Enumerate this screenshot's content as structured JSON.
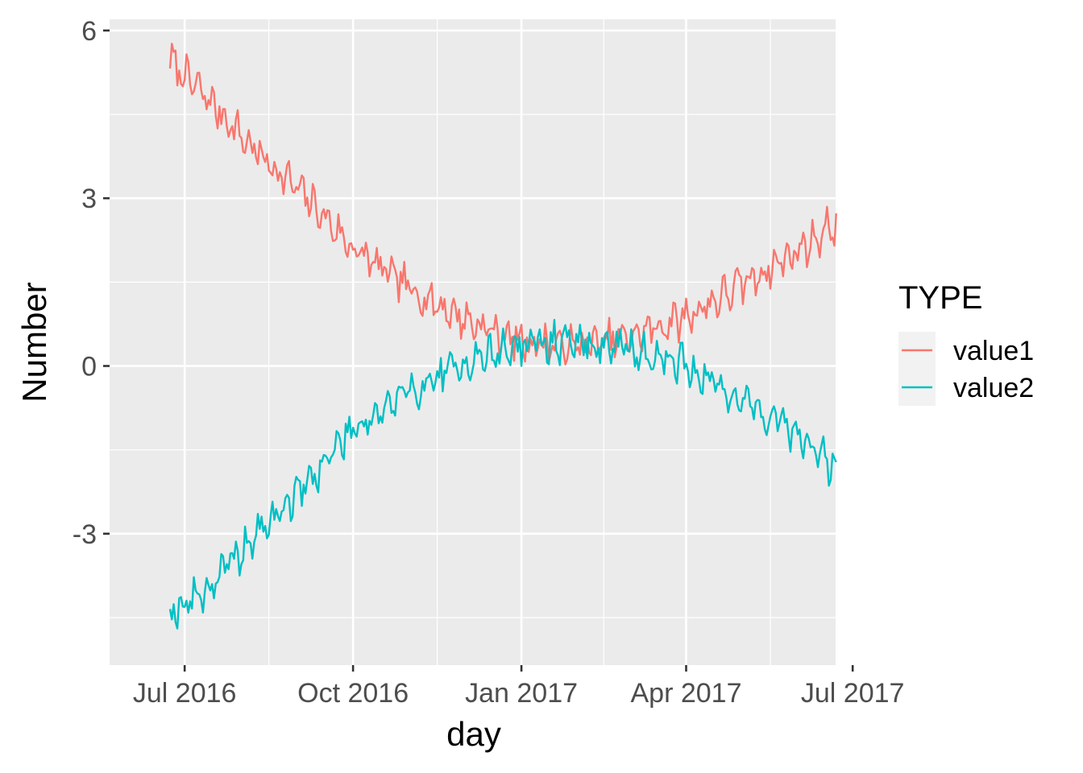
{
  "chart_data": {
    "type": "line",
    "x_start_date": "2016-06-23",
    "x_end_date": "2017-06-21",
    "day_count": 364,
    "xlabel": "day",
    "ylabel": "Number",
    "ylim": [
      -5.35,
      6.2
    ],
    "y_ticks": [
      {
        "value": 6,
        "label": "6"
      },
      {
        "value": 3,
        "label": "3"
      },
      {
        "value": 0,
        "label": "0"
      },
      {
        "value": -3,
        "label": "-3"
      }
    ],
    "y_minor": [
      -4.5,
      -1.5,
      1.5,
      4.5
    ],
    "x_ticks": [
      {
        "day": 8,
        "label": "Jul 2016"
      },
      {
        "day": 100,
        "label": "Oct 2016"
      },
      {
        "day": 192,
        "label": "Jan 2017"
      },
      {
        "day": 282,
        "label": "Apr 2017"
      },
      {
        "day": 373,
        "label": "Jul 2017"
      }
    ],
    "x_minor": [
      54,
      146,
      237,
      328
    ],
    "legend": {
      "title": "TYPE",
      "position": "right"
    },
    "series": [
      {
        "name": "value1",
        "color": "#F8766D",
        "anchors": [
          {
            "day": 0,
            "value": 5.45
          },
          {
            "day": 20,
            "value": 4.8
          },
          {
            "day": 45,
            "value": 3.9
          },
          {
            "day": 75,
            "value": 3.0
          },
          {
            "day": 100,
            "value": 2.1
          },
          {
            "day": 130,
            "value": 1.4
          },
          {
            "day": 160,
            "value": 0.85
          },
          {
            "day": 190,
            "value": 0.45
          },
          {
            "day": 220,
            "value": 0.35
          },
          {
            "day": 250,
            "value": 0.5
          },
          {
            "day": 280,
            "value": 0.85
          },
          {
            "day": 310,
            "value": 1.4
          },
          {
            "day": 340,
            "value": 2.0
          },
          {
            "day": 364,
            "value": 2.55
          }
        ],
        "noise": 0.33,
        "seed": 7
      },
      {
        "name": "value2",
        "color": "#00BFC4",
        "anchors": [
          {
            "day": 0,
            "value": -4.4
          },
          {
            "day": 20,
            "value": -4.0
          },
          {
            "day": 45,
            "value": -3.1
          },
          {
            "day": 75,
            "value": -2.1
          },
          {
            "day": 100,
            "value": -1.1
          },
          {
            "day": 130,
            "value": -0.5
          },
          {
            "day": 160,
            "value": 0.05
          },
          {
            "day": 190,
            "value": 0.35
          },
          {
            "day": 220,
            "value": 0.45
          },
          {
            "day": 250,
            "value": 0.3
          },
          {
            "day": 280,
            "value": 0.05
          },
          {
            "day": 310,
            "value": -0.55
          },
          {
            "day": 340,
            "value": -1.15
          },
          {
            "day": 364,
            "value": -1.85
          }
        ],
        "noise": 0.33,
        "seed": 19
      }
    ]
  }
}
